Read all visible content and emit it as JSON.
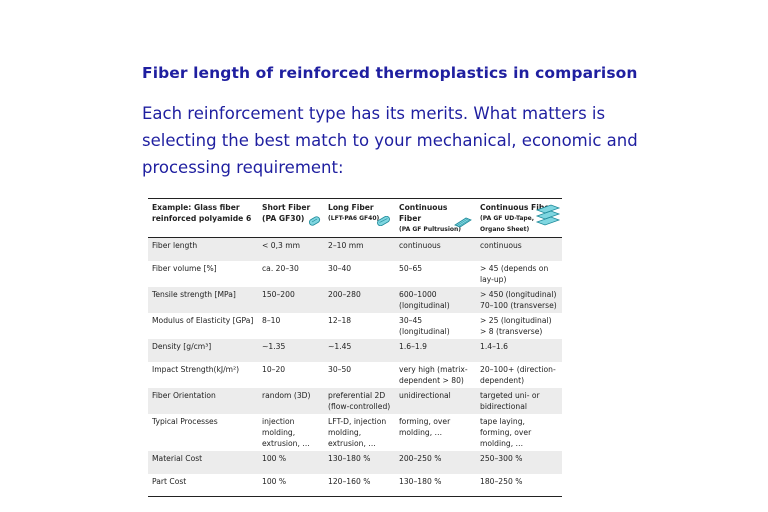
{
  "heading": "Fiber length of reinforced thermoplastics in comparison",
  "intro": "Each reinforcement type has its merits. What matters is selecting the best match to your mechanical, economic and processing requirement:",
  "table": {
    "header": {
      "col0_line1": "Example: Glass fiber",
      "col0_line2": "reinforced polyamide 6",
      "col1_line1": "Short Fiber",
      "col1_line2": "(PA GF30)",
      "col2_line1": "Long Fiber",
      "col2_line2": "(LFT-PA6 GF40)",
      "col3_line1": "Continuous Fiber",
      "col3_line2": "(PA GF Pultrusion)",
      "col4_line1": "Continuous Fiber",
      "col4_line2": "(PA GF UD-Tape,",
      "col4_line3": "Organo Sheet)"
    },
    "rows": [
      {
        "label": "Fiber length",
        "short": "< 0,3 mm",
        "long": "2–10 mm",
        "cont": "continuous",
        "cont2": "continuous"
      },
      {
        "label": "Fiber volume [%]",
        "short": "ca. 20–30",
        "long": "30–40",
        "cont": "50–65",
        "cont2": "> 45 (depends on lay-up)"
      },
      {
        "label": "Tensile strength [MPa]",
        "short": "150–200",
        "long": "200–280",
        "cont": "600–1000 (longitudinal)",
        "cont2": "> 450 (longitudinal) 70–100 (transverse)"
      },
      {
        "label": "Modulus of Elasticity [GPa]",
        "short": "8–10",
        "long": "12–18",
        "cont": "30–45 (longitudinal)",
        "cont2": "> 25 (longitudinal) > 8 (transverse)"
      },
      {
        "label": "Density [g/cm³]",
        "short": "~1.35",
        "long": "~1.45",
        "cont": "1.6–1.9",
        "cont2": "1.4–1.6"
      },
      {
        "label": "Impact Strength(kJ/m²)",
        "short": "10–20",
        "long": "30–50",
        "cont": "very high (matrix-dependent > 80)",
        "cont2": "20–100+ (direction-dependent)"
      },
      {
        "label": "Fiber Orientation",
        "short": "random (3D)",
        "long": "preferential 2D (flow-controlled)",
        "cont": "unidirectional",
        "cont2": "targeted uni- or bidirectional"
      },
      {
        "label": "Typical Processes",
        "short": "injection molding, extrusion, …",
        "long": "LFT-D, injection molding, extrusion, …",
        "cont": "forming, over molding, …",
        "cont2": "tape laying, forming, over molding, …"
      },
      {
        "label": "Material Cost",
        "short": "100 %",
        "long": "130–180 %",
        "cont": "200–250 %",
        "cont2": "250–300 %"
      },
      {
        "label": "Part Cost",
        "short": "100 %",
        "long": "120–160 %",
        "cont": "130–180 %",
        "cont2": "180–250 %"
      }
    ]
  },
  "icons": {
    "short": "short-fiber-pellet-icon",
    "long": "long-fiber-pellet-icon",
    "cont": "pultrusion-rod-icon",
    "cont2": "stacked-tape-icon"
  },
  "colors": {
    "heading": "#1f1fa0",
    "icon_fill": "#7fd6e0",
    "icon_stroke": "#1f8a9a",
    "row_shade": "#ececec"
  }
}
